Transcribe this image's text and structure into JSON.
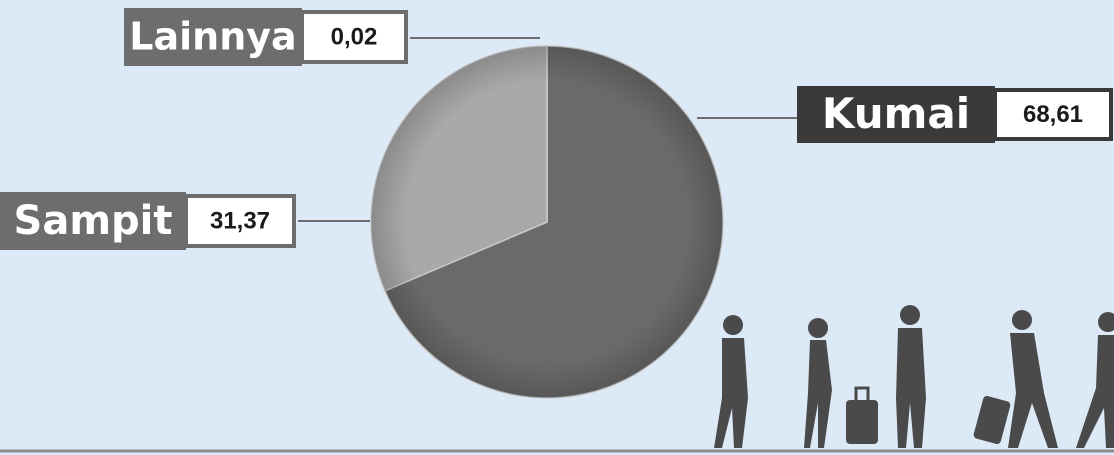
{
  "chart_data": {
    "type": "pie",
    "categories": [
      "Kumai",
      "Sampit",
      "Lainnya"
    ],
    "values": [
      68.61,
      31.37,
      0.02
    ],
    "value_labels": [
      "68,61",
      "31,37",
      "0,02"
    ],
    "colors": [
      "#6a6a6a",
      "#a9a9a9",
      "#8a8a8a"
    ]
  }
}
